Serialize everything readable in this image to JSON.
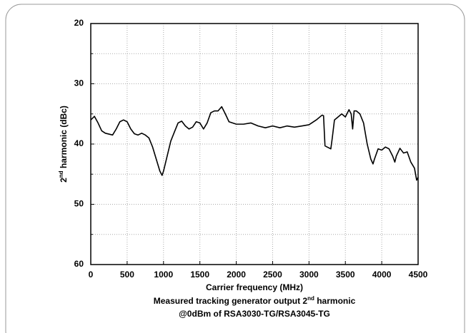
{
  "chart_data": {
    "type": "line",
    "y_label": [
      "2",
      "nd",
      " harmonic (dBc)"
    ],
    "x_label": "Carrier frequency (MHz)",
    "caption": [
      [
        "Measured tracking generator output 2",
        "nd",
        " harmonic"
      ],
      [
        "@0dBm of RSA3030-TG/RSA3045-TG"
      ]
    ],
    "x": [
      0,
      50,
      100,
      150,
      200,
      300,
      350,
      400,
      450,
      500,
      550,
      600,
      650,
      700,
      750,
      800,
      850,
      900,
      950,
      980,
      1000,
      1050,
      1100,
      1150,
      1200,
      1250,
      1300,
      1350,
      1400,
      1450,
      1500,
      1550,
      1600,
      1650,
      1700,
      1750,
      1800,
      1850,
      1900,
      2000,
      2100,
      2200,
      2300,
      2400,
      2500,
      2600,
      2700,
      2800,
      2900,
      3000,
      3100,
      3180,
      3200,
      3220,
      3250,
      3300,
      3320,
      3350,
      3400,
      3450,
      3500,
      3550,
      3580,
      3600,
      3620,
      3650,
      3700,
      3750,
      3800,
      3850,
      3880,
      3900,
      3950,
      4000,
      4050,
      4100,
      4150,
      4180,
      4200,
      4250,
      4300,
      4350,
      4400,
      4450,
      4480,
      4500
    ],
    "values": [
      36.0,
      35.4,
      36.5,
      37.8,
      38.2,
      38.5,
      37.5,
      36.3,
      36.0,
      36.3,
      37.5,
      38.3,
      38.5,
      38.2,
      38.5,
      39.0,
      40.5,
      42.5,
      44.5,
      45.2,
      44.5,
      42.0,
      39.5,
      38.0,
      36.5,
      36.2,
      37.0,
      37.5,
      37.2,
      36.3,
      36.5,
      37.5,
      36.5,
      34.8,
      34.5,
      34.5,
      33.8,
      35.0,
      36.3,
      36.7,
      36.7,
      36.5,
      37.0,
      37.3,
      37.0,
      37.3,
      37.0,
      37.2,
      37.0,
      36.8,
      36.0,
      35.2,
      35.3,
      40.3,
      40.5,
      40.8,
      39.0,
      36.0,
      35.5,
      35.0,
      35.5,
      34.3,
      35.0,
      37.5,
      34.5,
      34.5,
      35.0,
      36.5,
      40.0,
      42.5,
      43.3,
      42.5,
      40.8,
      41.0,
      40.5,
      40.8,
      42.0,
      43.0,
      42.0,
      40.7,
      41.5,
      41.3,
      43.0,
      44.0,
      46.0,
      45.5
    ],
    "color": "#000000",
    "xlim": [
      0,
      4500
    ],
    "xticks": [
      0,
      500,
      1000,
      1500,
      2000,
      2500,
      3000,
      3500,
      4000,
      4500
    ],
    "ylim": [
      60,
      20
    ],
    "yticks": [
      20,
      30,
      40,
      50,
      60
    ],
    "yminor": [
      25,
      35,
      45,
      55
    ],
    "grid": true
  }
}
